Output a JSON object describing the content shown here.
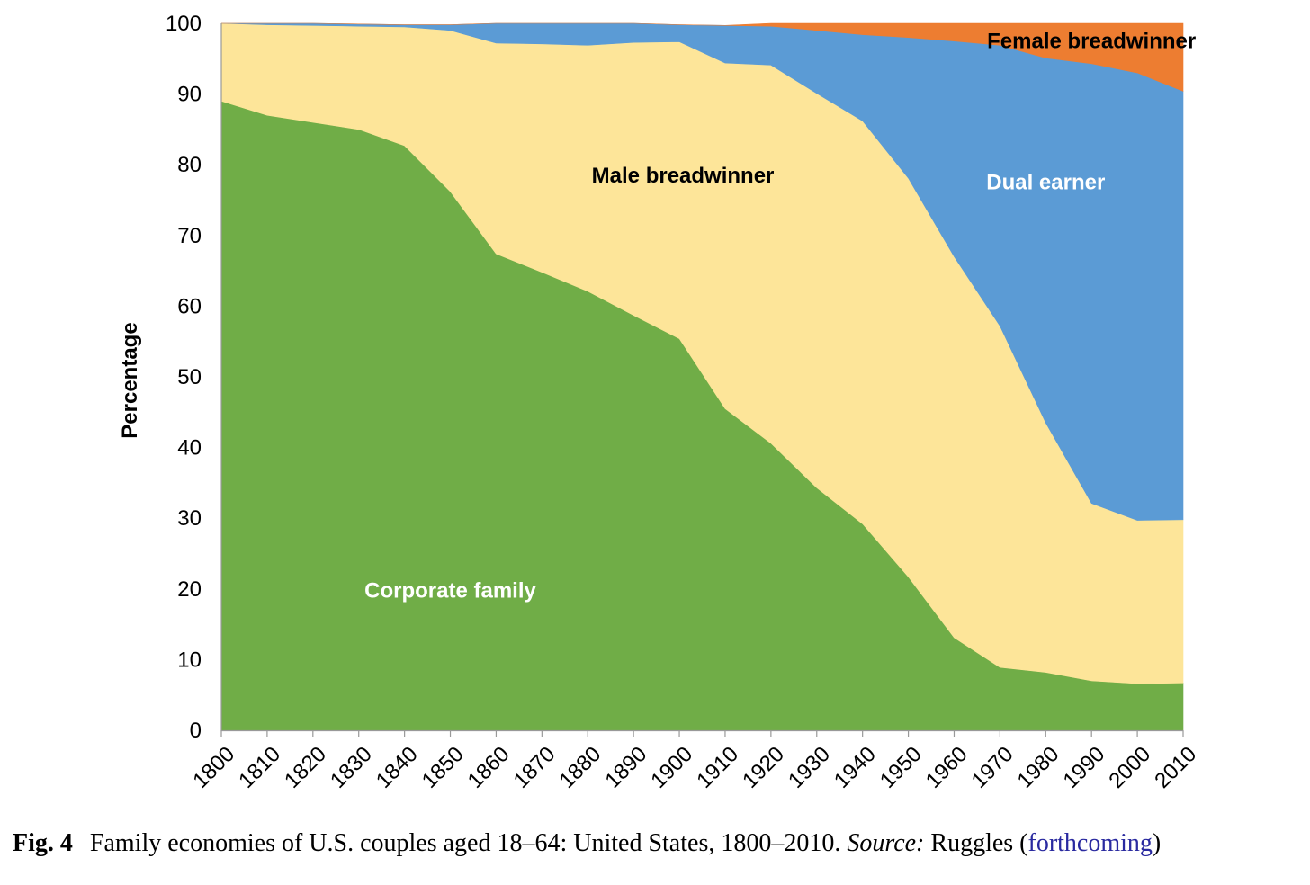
{
  "chart_data": {
    "type": "area",
    "stacked": true,
    "x": [
      1800,
      1810,
      1820,
      1830,
      1840,
      1850,
      1860,
      1870,
      1880,
      1890,
      1900,
      1910,
      1920,
      1930,
      1940,
      1950,
      1960,
      1970,
      1980,
      1990,
      2000,
      2010
    ],
    "ylabel": "Percentage",
    "ylim": [
      0,
      100
    ],
    "yticks": [
      0,
      10,
      20,
      30,
      40,
      50,
      60,
      70,
      80,
      90,
      100
    ],
    "series": [
      {
        "name": "Corporate family",
        "color": "#70ad47",
        "label_color": "#ffffff",
        "values": [
          89,
          87,
          86,
          85,
          82.7,
          76.2,
          67.4,
          64.8,
          62.1,
          58.7,
          55.4,
          45.5,
          40.6,
          34.3,
          29.2,
          21.7,
          13.1,
          8.9,
          8.2,
          7.0,
          6.6,
          6.7
        ]
      },
      {
        "name": "Male breadwinner",
        "color": "#fde599",
        "label_color": "#000000",
        "values": [
          11,
          12.8,
          13.7,
          14.6,
          16.8,
          22.8,
          29.8,
          32.3,
          34.8,
          38.6,
          42,
          48.9,
          53.5,
          55.8,
          57.0,
          56.4,
          53.9,
          48.3,
          35.3,
          25.1,
          23.1,
          23.1
        ]
      },
      {
        "name": "Dual earner",
        "color": "#5b9bd5",
        "label_color": "#ffffff",
        "values": [
          0,
          0.2,
          0.3,
          0.3,
          0.3,
          0.8,
          2.8,
          2.9,
          3.1,
          2.7,
          2.4,
          5.3,
          5.5,
          8.9,
          12.2,
          19.9,
          30.5,
          39.7,
          51.6,
          62.2,
          63.3,
          60.6
        ]
      },
      {
        "name": "Female breadwinner",
        "color": "#ed7d31",
        "label_color": "#000000",
        "values": [
          0,
          0,
          0,
          0,
          0,
          0,
          0,
          0,
          0,
          0,
          0,
          0,
          0.4,
          1.0,
          1.6,
          2.0,
          2.5,
          3.1,
          4.9,
          5.7,
          7.0,
          9.6
        ]
      }
    ]
  },
  "caption": {
    "fig_label": "Fig. 4",
    "text": "Family economies of U.S. couples aged 18–64: United States, 1800–2010.",
    "source_label": "Source:",
    "source_text": "Ruggles (",
    "source_link": "forthcoming",
    "source_end": ")"
  }
}
